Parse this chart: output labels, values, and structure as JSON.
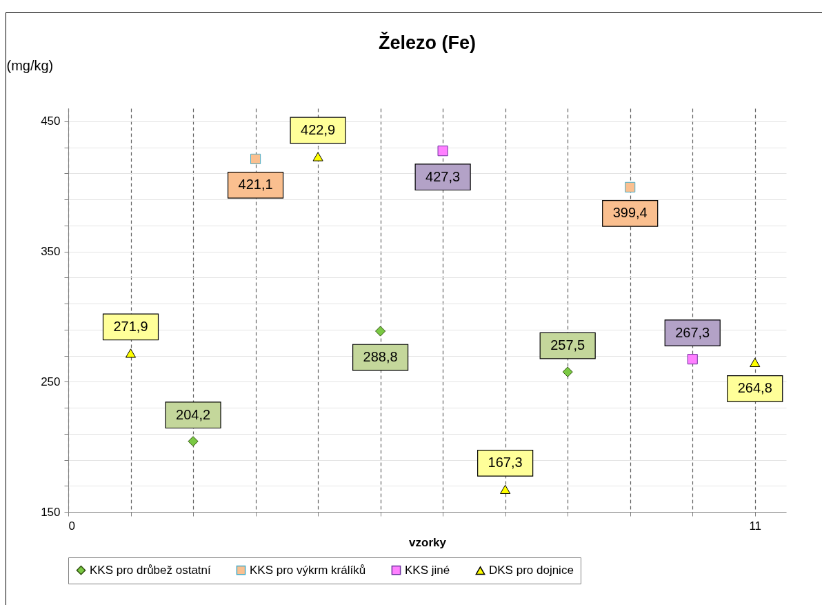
{
  "chart_data": {
    "type": "scatter",
    "title": "Železo (Fe)",
    "xlabel": "vzorky",
    "ylabel": "(mg/kg)",
    "x": [
      1,
      2,
      3,
      4,
      5,
      6,
      7,
      8,
      9,
      10,
      11
    ],
    "series": [
      {
        "name": "KKS pro drůbež ostatní",
        "color": "#7ac943",
        "marker": "diamond",
        "values": [
          null,
          204.2,
          null,
          null,
          288.8,
          null,
          null,
          257.5,
          null,
          null,
          null
        ],
        "value_labels": [
          null,
          "204,2",
          null,
          null,
          "288,8",
          null,
          null,
          "257,5",
          null,
          null,
          null
        ]
      },
      {
        "name": "KKS pro výkrm králíků",
        "color": "#fac090",
        "marker": "square",
        "values": [
          null,
          null,
          421.1,
          null,
          null,
          null,
          null,
          null,
          399.4,
          null,
          null
        ],
        "value_labels": [
          null,
          null,
          "421,1",
          null,
          null,
          null,
          null,
          null,
          "399,4",
          null,
          null
        ]
      },
      {
        "name": "KKS jiné",
        "color": "#ff80ff",
        "marker": "square",
        "values": [
          null,
          null,
          null,
          null,
          null,
          427.3,
          null,
          null,
          null,
          267.3,
          null
        ],
        "value_labels": [
          null,
          null,
          null,
          null,
          null,
          "427,3",
          null,
          null,
          null,
          "267,3",
          null
        ]
      },
      {
        "name": "DKS pro dojnice",
        "color": "#ffff00",
        "marker": "triangle",
        "values": [
          271.9,
          null,
          null,
          422.9,
          null,
          null,
          167.3,
          null,
          null,
          null,
          264.8
        ],
        "value_labels": [
          "271,9",
          null,
          null,
          "422,9",
          null,
          null,
          "167,3",
          null,
          null,
          null,
          "264,8"
        ]
      }
    ],
    "xlim": [
      0,
      11.5
    ],
    "xticks": [
      0,
      {
        "value": 1,
        "label": null
      },
      {
        "value": 2,
        "label": null
      },
      {
        "value": 3,
        "label": null
      },
      {
        "value": 4,
        "label": null
      },
      {
        "value": 5,
        "label": null
      },
      {
        "value": 6,
        "label": null
      },
      {
        "value": 7,
        "label": null
      },
      {
        "value": 8,
        "label": null
      },
      {
        "value": 9,
        "label": null
      },
      {
        "value": 10,
        "label": null
      },
      11
    ],
    "ylim": [
      150,
      460
    ],
    "yticks": [
      150,
      {
        "value": 170,
        "label": null
      },
      {
        "value": 190,
        "label": null
      },
      {
        "value": 210,
        "label": null
      },
      {
        "value": 230,
        "label": null
      },
      250,
      {
        "value": 270,
        "label": null
      },
      {
        "value": 290,
        "label": null
      },
      {
        "value": 310,
        "label": null
      },
      {
        "value": 330,
        "label": null
      },
      350,
      {
        "value": 370,
        "label": null
      },
      {
        "value": 390,
        "label": null
      },
      {
        "value": 410,
        "label": null
      },
      {
        "value": 430,
        "label": null
      },
      450
    ],
    "grid": true,
    "legend": "bottom"
  }
}
